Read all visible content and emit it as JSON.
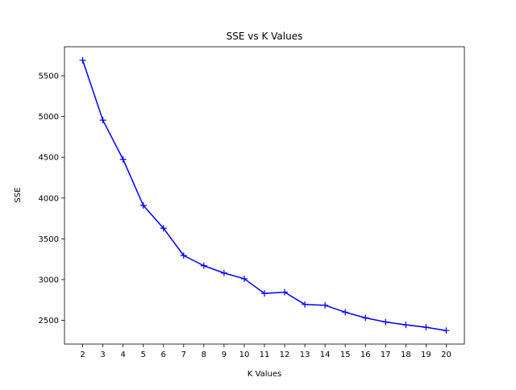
{
  "chart_data": {
    "type": "line",
    "title": "SSE vs K Values",
    "xlabel": "K Values",
    "ylabel": "SSE",
    "x": [
      2,
      3,
      4,
      5,
      6,
      7,
      8,
      9,
      10,
      11,
      12,
      13,
      14,
      15,
      16,
      17,
      18,
      19,
      20
    ],
    "series": [
      {
        "values": [
          5690,
          4955,
          4475,
          3910,
          3630,
          3295,
          3170,
          3080,
          3010,
          2830,
          2845,
          2695,
          2685,
          2600,
          2530,
          2480,
          2445,
          2415,
          2375
        ],
        "color": "#0000ff",
        "marker": "plus"
      }
    ],
    "xticks": [
      2,
      3,
      4,
      5,
      6,
      7,
      8,
      9,
      10,
      11,
      12,
      13,
      14,
      15,
      16,
      17,
      18,
      19,
      20
    ],
    "yticks": [
      2500,
      3000,
      3500,
      4000,
      4500,
      5000,
      5500
    ],
    "xlim": [
      1.1,
      20.9
    ],
    "ylim": [
      2209,
      5856
    ],
    "grid": false,
    "legend": false
  }
}
